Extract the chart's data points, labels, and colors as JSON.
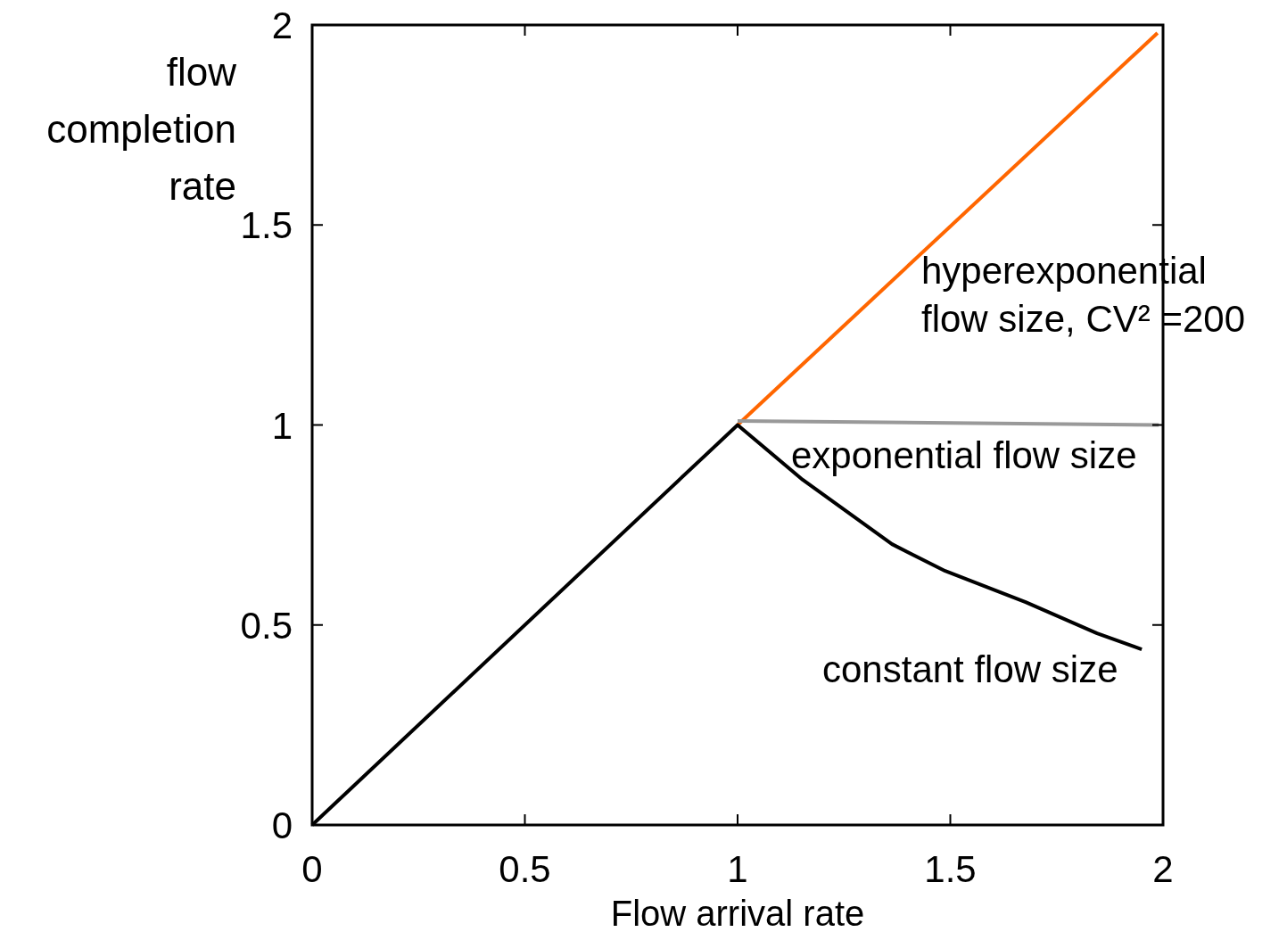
{
  "chart_data": {
    "type": "line",
    "xlabel": "Flow arrival rate",
    "ylabel": "flow completion rate",
    "xlim": [
      0,
      2
    ],
    "ylim": [
      0,
      2
    ],
    "xticks": [
      0,
      0.5,
      1,
      1.5,
      2
    ],
    "yticks": [
      0,
      0.5,
      1,
      1.5,
      2
    ],
    "grid": false,
    "legend": false,
    "marker": "none",
    "line_style": "solid",
    "series": [
      {
        "color": "#ff6600",
        "x": [
          1,
          1.987
        ],
        "values": [
          1,
          1.98
        ]
      },
      {
        "color": "#999999",
        "x": [
          1,
          1.99
        ],
        "values": [
          1.01,
          1.0
        ]
      },
      {
        "color": "#000000",
        "x": [
          0,
          1,
          1.153,
          1.363,
          1.488,
          1.677,
          1.845,
          1.95
        ],
        "values": [
          0,
          1,
          0.863,
          0.702,
          0.635,
          0.557,
          0.479,
          0.439
        ]
      }
    ],
    "annotations": [
      "hyperexponential\nflow size, CV² =200",
      "exponential flow size",
      "constant flow size"
    ]
  }
}
